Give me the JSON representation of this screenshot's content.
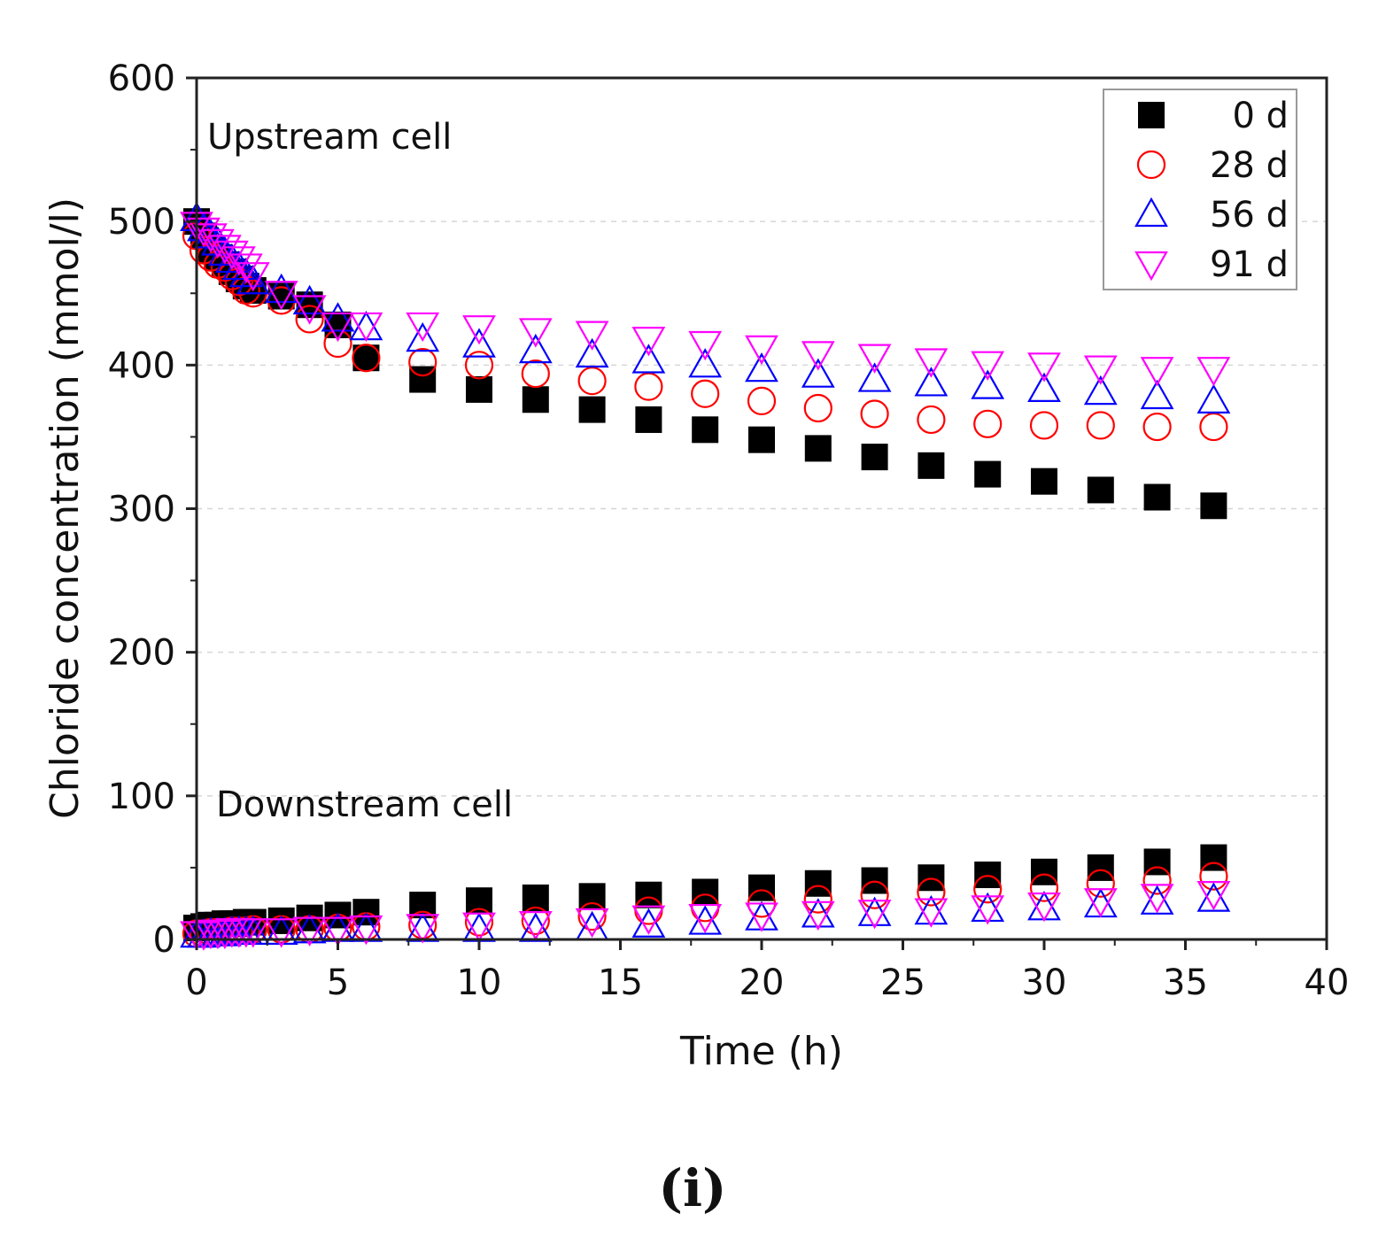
{
  "chart_data": {
    "type": "scatter",
    "xlabel": "Time (h)",
    "ylabel": "Chloride concentration (mmol/l)",
    "xlim": [
      0,
      40
    ],
    "ylim": [
      0,
      600
    ],
    "xticks": [
      0,
      5,
      10,
      15,
      20,
      25,
      30,
      35,
      40
    ],
    "yticks": [
      0,
      100,
      200,
      300,
      400,
      500,
      600
    ],
    "grid": "horizontal dashed",
    "legend_position": "top-right",
    "annotations": [
      "Upstream cell",
      "Downstream cell"
    ],
    "panel_label": "(i)",
    "series": [
      {
        "name": "0 d",
        "marker": "square-filled",
        "color": "#000000",
        "upstream": [
          [
            0,
            500
          ],
          [
            0.25,
            490
          ],
          [
            0.5,
            480
          ],
          [
            0.75,
            475
          ],
          [
            1,
            470
          ],
          [
            1.25,
            465
          ],
          [
            1.5,
            460
          ],
          [
            1.75,
            455
          ],
          [
            2,
            452
          ],
          [
            3,
            448
          ],
          [
            4,
            442
          ],
          [
            5,
            428
          ],
          [
            6,
            405
          ],
          [
            8,
            390
          ],
          [
            10,
            383
          ],
          [
            12,
            376
          ],
          [
            14,
            369
          ],
          [
            16,
            362
          ],
          [
            18,
            355
          ],
          [
            20,
            348
          ],
          [
            22,
            342
          ],
          [
            24,
            336
          ],
          [
            26,
            330
          ],
          [
            28,
            324
          ],
          [
            30,
            319
          ],
          [
            32,
            313
          ],
          [
            34,
            308
          ],
          [
            36,
            302
          ]
        ],
        "downstream": [
          [
            0,
            8
          ],
          [
            0.25,
            9
          ],
          [
            0.5,
            10
          ],
          [
            0.75,
            10
          ],
          [
            1,
            11
          ],
          [
            1.25,
            11
          ],
          [
            1.5,
            11
          ],
          [
            1.75,
            12
          ],
          [
            2,
            12
          ],
          [
            3,
            13
          ],
          [
            4,
            15
          ],
          [
            5,
            17
          ],
          [
            6,
            19
          ],
          [
            8,
            24
          ],
          [
            10,
            27
          ],
          [
            12,
            29
          ],
          [
            14,
            30
          ],
          [
            16,
            31
          ],
          [
            18,
            33
          ],
          [
            20,
            36
          ],
          [
            22,
            39
          ],
          [
            24,
            41
          ],
          [
            26,
            43
          ],
          [
            28,
            45
          ],
          [
            30,
            47
          ],
          [
            32,
            50
          ],
          [
            34,
            54
          ],
          [
            36,
            57
          ]
        ]
      },
      {
        "name": "28 d",
        "marker": "circle-open",
        "color": "#ff0000",
        "upstream": [
          [
            0,
            490
          ],
          [
            0.25,
            480
          ],
          [
            0.5,
            475
          ],
          [
            0.75,
            470
          ],
          [
            1,
            468
          ],
          [
            1.25,
            462
          ],
          [
            1.5,
            458
          ],
          [
            1.75,
            452
          ],
          [
            2,
            450
          ],
          [
            3,
            445
          ],
          [
            4,
            432
          ],
          [
            5,
            415
          ],
          [
            6,
            405
          ],
          [
            8,
            402
          ],
          [
            10,
            400
          ],
          [
            12,
            394
          ],
          [
            14,
            389
          ],
          [
            16,
            385
          ],
          [
            18,
            380
          ],
          [
            20,
            375
          ],
          [
            22,
            370
          ],
          [
            24,
            366
          ],
          [
            26,
            362
          ],
          [
            28,
            359
          ],
          [
            30,
            358
          ],
          [
            32,
            358
          ],
          [
            34,
            357
          ],
          [
            36,
            357
          ]
        ],
        "downstream": [
          [
            0,
            4
          ],
          [
            0.25,
            4
          ],
          [
            0.5,
            5
          ],
          [
            0.75,
            5
          ],
          [
            1,
            5
          ],
          [
            1.25,
            6
          ],
          [
            1.5,
            6
          ],
          [
            1.75,
            6
          ],
          [
            2,
            7
          ],
          [
            3,
            7
          ],
          [
            4,
            7
          ],
          [
            5,
            8
          ],
          [
            6,
            9
          ],
          [
            8,
            10
          ],
          [
            10,
            12
          ],
          [
            12,
            13
          ],
          [
            14,
            16
          ],
          [
            16,
            20
          ],
          [
            18,
            22
          ],
          [
            20,
            25
          ],
          [
            22,
            28
          ],
          [
            24,
            31
          ],
          [
            26,
            33
          ],
          [
            28,
            35
          ],
          [
            30,
            36
          ],
          [
            32,
            39
          ],
          [
            34,
            41
          ],
          [
            36,
            44
          ]
        ]
      },
      {
        "name": "56 d",
        "marker": "triangle-up-open",
        "color": "#0000ff",
        "upstream": [
          [
            0,
            502
          ],
          [
            0.25,
            495
          ],
          [
            0.5,
            490
          ],
          [
            0.75,
            485
          ],
          [
            1,
            478
          ],
          [
            1.25,
            473
          ],
          [
            1.5,
            468
          ],
          [
            1.75,
            463
          ],
          [
            2,
            458
          ],
          [
            3,
            452
          ],
          [
            4,
            444
          ],
          [
            5,
            432
          ],
          [
            6,
            426
          ],
          [
            8,
            418
          ],
          [
            10,
            414
          ],
          [
            12,
            410
          ],
          [
            14,
            407
          ],
          [
            16,
            403
          ],
          [
            18,
            400
          ],
          [
            20,
            397
          ],
          [
            22,
            393
          ],
          [
            24,
            390
          ],
          [
            26,
            387
          ],
          [
            28,
            385
          ],
          [
            30,
            383
          ],
          [
            32,
            381
          ],
          [
            34,
            378
          ],
          [
            36,
            375
          ]
        ],
        "downstream": [
          [
            0,
            3
          ],
          [
            0.25,
            3
          ],
          [
            0.5,
            4
          ],
          [
            0.75,
            4
          ],
          [
            1,
            4
          ],
          [
            1.25,
            5
          ],
          [
            1.5,
            5
          ],
          [
            1.75,
            5
          ],
          [
            2,
            5
          ],
          [
            3,
            5
          ],
          [
            4,
            6
          ],
          [
            5,
            7
          ],
          [
            6,
            7
          ],
          [
            8,
            7
          ],
          [
            10,
            7
          ],
          [
            12,
            7
          ],
          [
            14,
            8
          ],
          [
            16,
            10
          ],
          [
            18,
            12
          ],
          [
            20,
            15
          ],
          [
            22,
            17
          ],
          [
            24,
            18
          ],
          [
            26,
            19
          ],
          [
            28,
            21
          ],
          [
            30,
            22
          ],
          [
            32,
            24
          ],
          [
            34,
            26
          ],
          [
            36,
            28
          ]
        ]
      },
      {
        "name": "91 d",
        "marker": "triangle-down-open",
        "color": "#ff00ff",
        "upstream": [
          [
            0,
            498
          ],
          [
            0.25,
            494
          ],
          [
            0.5,
            490
          ],
          [
            0.75,
            486
          ],
          [
            1,
            482
          ],
          [
            1.25,
            478
          ],
          [
            1.5,
            474
          ],
          [
            1.75,
            469
          ],
          [
            2,
            463
          ],
          [
            3,
            450
          ],
          [
            4,
            440
          ],
          [
            5,
            428
          ],
          [
            6,
            428
          ],
          [
            8,
            428
          ],
          [
            10,
            426
          ],
          [
            12,
            424
          ],
          [
            14,
            422
          ],
          [
            16,
            418
          ],
          [
            18,
            415
          ],
          [
            20,
            412
          ],
          [
            22,
            408
          ],
          [
            24,
            406
          ],
          [
            26,
            403
          ],
          [
            28,
            401
          ],
          [
            30,
            400
          ],
          [
            32,
            398
          ],
          [
            34,
            397
          ],
          [
            36,
            397
          ]
        ],
        "downstream": [
          [
            0,
            4
          ],
          [
            0.25,
            4
          ],
          [
            0.5,
            5
          ],
          [
            0.75,
            5
          ],
          [
            1,
            5
          ],
          [
            1.25,
            6
          ],
          [
            1.5,
            6
          ],
          [
            1.75,
            6
          ],
          [
            2,
            6
          ],
          [
            3,
            6
          ],
          [
            4,
            7
          ],
          [
            5,
            7
          ],
          [
            6,
            8
          ],
          [
            8,
            9
          ],
          [
            10,
            10
          ],
          [
            12,
            11
          ],
          [
            14,
            13
          ],
          [
            16,
            15
          ],
          [
            18,
            16
          ],
          [
            20,
            17
          ],
          [
            22,
            18
          ],
          [
            24,
            19
          ],
          [
            26,
            20
          ],
          [
            28,
            22
          ],
          [
            30,
            24
          ],
          [
            32,
            27
          ],
          [
            34,
            30
          ],
          [
            36,
            32
          ]
        ]
      }
    ]
  }
}
